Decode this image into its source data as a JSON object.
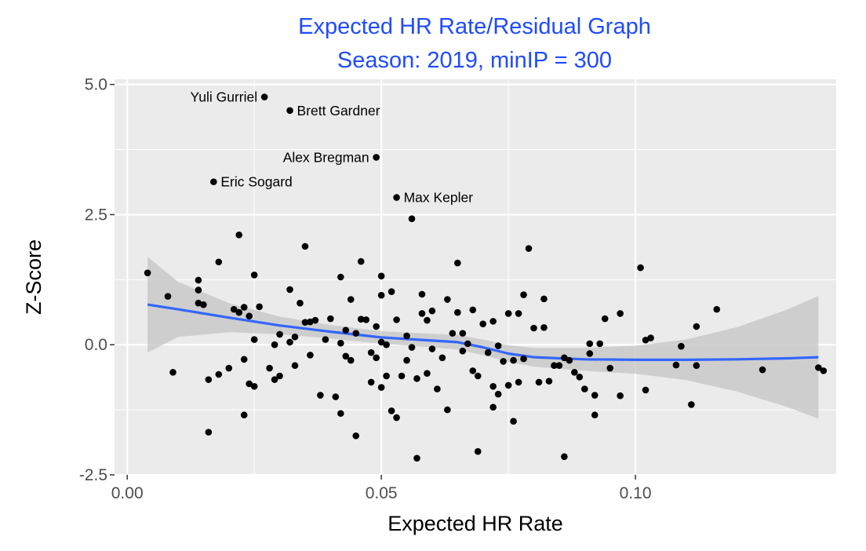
{
  "chart_data": {
    "type": "scatter",
    "title": "Expected HR Rate/Residual Graph",
    "subtitle": "Season: 2019, minIP = 300",
    "xlabel": "Expected HR Rate",
    "ylabel": "Z-Score",
    "xlim": [
      -0.0025,
      0.1395
    ],
    "ylim": [
      -2.5,
      5.1
    ],
    "x_ticks": [
      0.0,
      0.05,
      0.1
    ],
    "x_tick_labels": [
      "0.00",
      "0.05",
      "0.10"
    ],
    "y_ticks": [
      -2.5,
      0.0,
      2.5,
      5.0
    ],
    "y_tick_labels": [
      "-2.5",
      "0.0",
      "2.5",
      "5.0"
    ],
    "grid": true,
    "colors": {
      "panel": "#ebebeb",
      "grid": "#ffffff",
      "points": "#000000",
      "smooth_line": "#3366ff",
      "confidence_band": "#c4c4c4",
      "title": "#1f4bff"
    },
    "smooth": {
      "method": "loess",
      "x": [
        0.004,
        0.01,
        0.02,
        0.03,
        0.04,
        0.05,
        0.06,
        0.065,
        0.07,
        0.075,
        0.08,
        0.09,
        0.1,
        0.11,
        0.12,
        0.13,
        0.136
      ],
      "y": [
        0.77,
        0.68,
        0.52,
        0.37,
        0.25,
        0.14,
        0.08,
        0.05,
        -0.05,
        -0.17,
        -0.24,
        -0.28,
        -0.29,
        -0.29,
        -0.28,
        -0.26,
        -0.24
      ],
      "lower": [
        -0.15,
        0.15,
        0.24,
        0.2,
        0.12,
        0.02,
        -0.05,
        -0.09,
        -0.2,
        -0.33,
        -0.42,
        -0.5,
        -0.56,
        -0.68,
        -0.9,
        -1.2,
        -1.42
      ],
      "upper": [
        1.69,
        1.21,
        0.8,
        0.54,
        0.38,
        0.26,
        0.21,
        0.19,
        0.1,
        -0.01,
        -0.06,
        -0.06,
        -0.02,
        0.1,
        0.34,
        0.68,
        0.94
      ]
    },
    "points": [
      {
        "x": 0.004,
        "y": 1.38
      },
      {
        "x": 0.008,
        "y": 0.93
      },
      {
        "x": 0.009,
        "y": -0.53
      },
      {
        "x": 0.014,
        "y": 1.24
      },
      {
        "x": 0.014,
        "y": 1.05
      },
      {
        "x": 0.014,
        "y": 0.8
      },
      {
        "x": 0.015,
        "y": 0.77
      },
      {
        "x": 0.016,
        "y": -0.67
      },
      {
        "x": 0.016,
        "y": -1.68
      },
      {
        "x": 0.017,
        "y": 3.13
      },
      {
        "x": 0.018,
        "y": 1.59
      },
      {
        "x": 0.018,
        "y": -0.57
      },
      {
        "x": 0.02,
        "y": -0.45
      },
      {
        "x": 0.021,
        "y": 0.68
      },
      {
        "x": 0.022,
        "y": 2.11
      },
      {
        "x": 0.022,
        "y": 0.62
      },
      {
        "x": 0.023,
        "y": -0.28
      },
      {
        "x": 0.023,
        "y": 0.72
      },
      {
        "x": 0.023,
        "y": -1.35
      },
      {
        "x": 0.024,
        "y": 0.55
      },
      {
        "x": 0.024,
        "y": -0.75
      },
      {
        "x": 0.025,
        "y": 1.34
      },
      {
        "x": 0.025,
        "y": 0.1
      },
      {
        "x": 0.025,
        "y": -0.8
      },
      {
        "x": 0.026,
        "y": 0.73
      },
      {
        "x": 0.027,
        "y": 4.76
      },
      {
        "x": 0.028,
        "y": -0.45
      },
      {
        "x": 0.029,
        "y": 0.0
      },
      {
        "x": 0.029,
        "y": -0.67
      },
      {
        "x": 0.03,
        "y": 0.2
      },
      {
        "x": 0.03,
        "y": -0.6
      },
      {
        "x": 0.032,
        "y": 4.5
      },
      {
        "x": 0.032,
        "y": 1.06
      },
      {
        "x": 0.032,
        "y": 0.05
      },
      {
        "x": 0.033,
        "y": 0.15
      },
      {
        "x": 0.033,
        "y": -0.4
      },
      {
        "x": 0.034,
        "y": 0.8
      },
      {
        "x": 0.035,
        "y": 1.89
      },
      {
        "x": 0.035,
        "y": 0.43
      },
      {
        "x": 0.036,
        "y": 0.44
      },
      {
        "x": 0.036,
        "y": -0.2
      },
      {
        "x": 0.037,
        "y": 0.47
      },
      {
        "x": 0.038,
        "y": -0.97
      },
      {
        "x": 0.039,
        "y": 0.1
      },
      {
        "x": 0.04,
        "y": 0.5
      },
      {
        "x": 0.041,
        "y": -1.0
      },
      {
        "x": 0.042,
        "y": 1.3
      },
      {
        "x": 0.042,
        "y": 0.03
      },
      {
        "x": 0.042,
        "y": -1.32
      },
      {
        "x": 0.043,
        "y": 0.28
      },
      {
        "x": 0.043,
        "y": -0.22
      },
      {
        "x": 0.044,
        "y": 0.87
      },
      {
        "x": 0.044,
        "y": -0.3
      },
      {
        "x": 0.045,
        "y": 0.22
      },
      {
        "x": 0.045,
        "y": -1.75
      },
      {
        "x": 0.046,
        "y": 1.6
      },
      {
        "x": 0.046,
        "y": 0.49
      },
      {
        "x": 0.047,
        "y": 0.48
      },
      {
        "x": 0.048,
        "y": -0.15
      },
      {
        "x": 0.048,
        "y": -0.72
      },
      {
        "x": 0.049,
        "y": 3.6
      },
      {
        "x": 0.049,
        "y": 0.35
      },
      {
        "x": 0.049,
        "y": -0.25
      },
      {
        "x": 0.05,
        "y": 1.32
      },
      {
        "x": 0.05,
        "y": 0.95
      },
      {
        "x": 0.05,
        "y": 0.05
      },
      {
        "x": 0.05,
        "y": -0.82
      },
      {
        "x": 0.051,
        "y": 0.0
      },
      {
        "x": 0.051,
        "y": -0.6
      },
      {
        "x": 0.052,
        "y": 1.02
      },
      {
        "x": 0.052,
        "y": -1.27
      },
      {
        "x": 0.053,
        "y": 2.83
      },
      {
        "x": 0.053,
        "y": 0.48
      },
      {
        "x": 0.053,
        "y": -1.4
      },
      {
        "x": 0.054,
        "y": -0.6
      },
      {
        "x": 0.055,
        "y": 0.17
      },
      {
        "x": 0.055,
        "y": -0.3
      },
      {
        "x": 0.056,
        "y": 2.42
      },
      {
        "x": 0.056,
        "y": -0.05
      },
      {
        "x": 0.057,
        "y": -0.65
      },
      {
        "x": 0.057,
        "y": -2.18
      },
      {
        "x": 0.058,
        "y": 0.97
      },
      {
        "x": 0.058,
        "y": 0.6
      },
      {
        "x": 0.059,
        "y": 0.47
      },
      {
        "x": 0.059,
        "y": -0.55
      },
      {
        "x": 0.06,
        "y": 0.65
      },
      {
        "x": 0.06,
        "y": -0.08
      },
      {
        "x": 0.061,
        "y": -0.85
      },
      {
        "x": 0.062,
        "y": -0.25
      },
      {
        "x": 0.063,
        "y": 0.87
      },
      {
        "x": 0.063,
        "y": -1.25
      },
      {
        "x": 0.064,
        "y": 0.22
      },
      {
        "x": 0.065,
        "y": 1.57
      },
      {
        "x": 0.065,
        "y": 0.62
      },
      {
        "x": 0.066,
        "y": 0.22
      },
      {
        "x": 0.066,
        "y": -0.12
      },
      {
        "x": 0.067,
        "y": 0.02
      },
      {
        "x": 0.068,
        "y": 0.67
      },
      {
        "x": 0.068,
        "y": -0.5
      },
      {
        "x": 0.069,
        "y": -0.6
      },
      {
        "x": 0.069,
        "y": -2.05
      },
      {
        "x": 0.07,
        "y": 0.4
      },
      {
        "x": 0.071,
        "y": -0.15
      },
      {
        "x": 0.072,
        "y": 0.45
      },
      {
        "x": 0.072,
        "y": -0.8
      },
      {
        "x": 0.072,
        "y": -1.2
      },
      {
        "x": 0.073,
        "y": -0.02
      },
      {
        "x": 0.073,
        "y": -0.95
      },
      {
        "x": 0.074,
        "y": -0.32
      },
      {
        "x": 0.075,
        "y": 0.6
      },
      {
        "x": 0.075,
        "y": -0.78
      },
      {
        "x": 0.076,
        "y": -0.3
      },
      {
        "x": 0.076,
        "y": -1.47
      },
      {
        "x": 0.077,
        "y": 0.6
      },
      {
        "x": 0.077,
        "y": -0.72
      },
      {
        "x": 0.078,
        "y": 0.96
      },
      {
        "x": 0.078,
        "y": -0.27
      },
      {
        "x": 0.079,
        "y": 1.85
      },
      {
        "x": 0.08,
        "y": 0.32
      },
      {
        "x": 0.081,
        "y": -0.72
      },
      {
        "x": 0.082,
        "y": 0.88
      },
      {
        "x": 0.082,
        "y": 0.33
      },
      {
        "x": 0.083,
        "y": -0.7
      },
      {
        "x": 0.084,
        "y": -0.4
      },
      {
        "x": 0.085,
        "y": -0.4
      },
      {
        "x": 0.086,
        "y": -0.25
      },
      {
        "x": 0.086,
        "y": -2.15
      },
      {
        "x": 0.087,
        "y": -0.3
      },
      {
        "x": 0.088,
        "y": -0.53
      },
      {
        "x": 0.089,
        "y": -0.62
      },
      {
        "x": 0.09,
        "y": -0.85
      },
      {
        "x": 0.091,
        "y": 0.02
      },
      {
        "x": 0.091,
        "y": -0.17
      },
      {
        "x": 0.092,
        "y": -0.97
      },
      {
        "x": 0.092,
        "y": -1.35
      },
      {
        "x": 0.093,
        "y": 0.02
      },
      {
        "x": 0.094,
        "y": 0.5
      },
      {
        "x": 0.095,
        "y": -0.45
      },
      {
        "x": 0.097,
        "y": 0.6
      },
      {
        "x": 0.097,
        "y": -0.98
      },
      {
        "x": 0.101,
        "y": 1.48
      },
      {
        "x": 0.102,
        "y": 0.09
      },
      {
        "x": 0.102,
        "y": -0.87
      },
      {
        "x": 0.103,
        "y": 0.13
      },
      {
        "x": 0.108,
        "y": -0.39
      },
      {
        "x": 0.109,
        "y": -0.03
      },
      {
        "x": 0.111,
        "y": -1.15
      },
      {
        "x": 0.112,
        "y": 0.35
      },
      {
        "x": 0.112,
        "y": -0.4
      },
      {
        "x": 0.116,
        "y": 0.68
      },
      {
        "x": 0.125,
        "y": -0.48
      },
      {
        "x": 0.136,
        "y": -0.44
      },
      {
        "x": 0.137,
        "y": -0.5
      }
    ],
    "annotations": [
      {
        "text": "Yuli Gurriel",
        "x": 0.027,
        "y": 4.76,
        "anchor": "end"
      },
      {
        "text": "Brett Gardner",
        "x": 0.032,
        "y": 4.5,
        "anchor": "start"
      },
      {
        "text": "Eric Sogard",
        "x": 0.017,
        "y": 3.13,
        "anchor": "start"
      },
      {
        "text": "Alex Bregman",
        "x": 0.049,
        "y": 3.6,
        "anchor": "end"
      },
      {
        "text": "Max Kepler",
        "x": 0.053,
        "y": 2.83,
        "anchor": "start"
      }
    ]
  }
}
